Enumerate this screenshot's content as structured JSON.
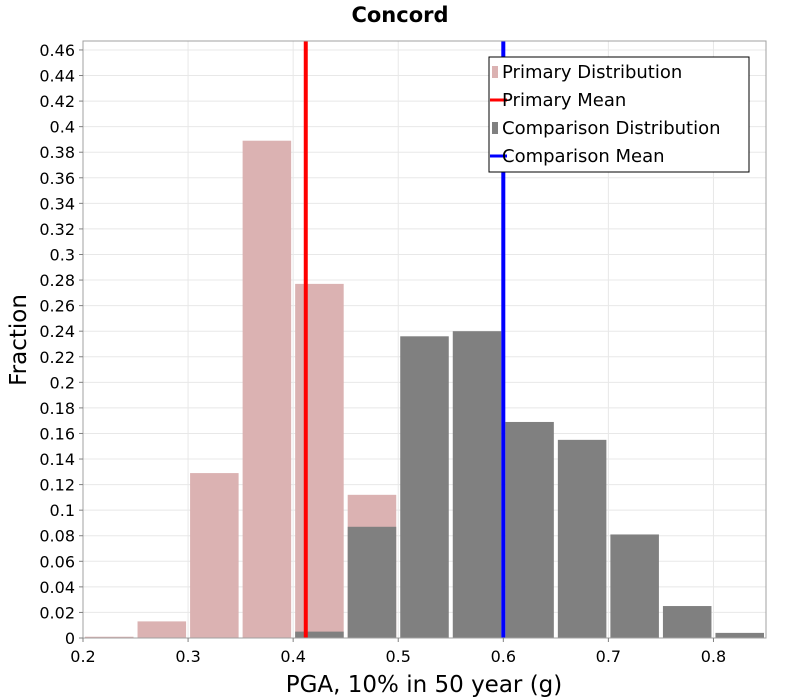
{
  "chart_data": {
    "type": "bar",
    "title": "Concord",
    "xlabel": "PGA, 10% in 50 year (g)",
    "ylabel": "Fraction",
    "xlim": [
      0.2,
      0.85
    ],
    "ylim": [
      0,
      0.467
    ],
    "x_ticks": [
      "0.2",
      "0.3",
      "0.4",
      "0.5",
      "0.6",
      "0.7",
      "0.8"
    ],
    "y_ticks": [
      "0",
      "0.02",
      "0.04",
      "0.06",
      "0.08",
      "0.1",
      "0.12",
      "0.14",
      "0.16",
      "0.18",
      "0.2",
      "0.22",
      "0.24",
      "0.26",
      "0.28",
      "0.3",
      "0.32",
      "0.34",
      "0.36",
      "0.38",
      "0.4",
      "0.42",
      "0.44",
      "0.46"
    ],
    "grid": true,
    "legend_position": "top-right",
    "bin_width": 0.05,
    "series": [
      {
        "name": "Primary Distribution",
        "color": "#dbb2b2",
        "bins": [
          0.225,
          0.275,
          0.325,
          0.375,
          0.425,
          0.475
        ],
        "values": [
          0.001,
          0.013,
          0.129,
          0.389,
          0.277,
          0.112
        ]
      },
      {
        "name": "Comparison Distribution",
        "color": "#808080",
        "bins": [
          0.425,
          0.475,
          0.525,
          0.575,
          0.625,
          0.675,
          0.725,
          0.775,
          0.825
        ],
        "values": [
          0.005,
          0.087,
          0.236,
          0.24,
          0.169,
          0.155,
          0.081,
          0.025,
          0.004
        ]
      }
    ],
    "mean_lines": [
      {
        "name": "Primary Mean",
        "color": "#ff0000",
        "x": 0.412
      },
      {
        "name": "Comparison Mean",
        "color": "#0000ff",
        "x": 0.6
      }
    ],
    "legend": [
      {
        "label": "Primary Distribution",
        "kind": "box",
        "color": "#dbb2b2"
      },
      {
        "label": "Primary Mean",
        "kind": "line",
        "color": "#ff0000"
      },
      {
        "label": "Comparison Distribution",
        "kind": "box",
        "color": "#808080"
      },
      {
        "label": "Comparison Mean",
        "kind": "line",
        "color": "#0000ff"
      }
    ]
  }
}
